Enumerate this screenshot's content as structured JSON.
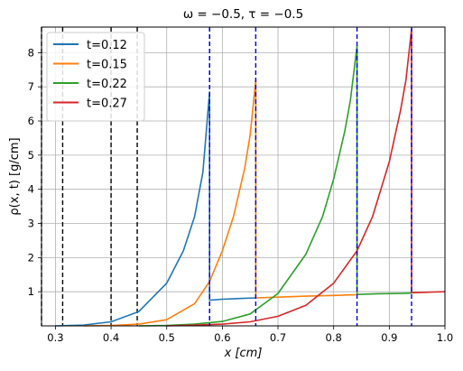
{
  "chart_data": {
    "type": "line",
    "title": "ω = −0.5,  τ = −0.5",
    "xlabel": "x [cm]",
    "ylabel": "ρ(x, t)  [g/cm]",
    "xlim": [
      0.275,
      1.0
    ],
    "ylim": [
      0.0,
      8.75
    ],
    "xticks": [
      0.3,
      0.4,
      0.5,
      0.6,
      0.7,
      0.8,
      0.9,
      1.0
    ],
    "xtick_labels": [
      "0.3",
      "0.4",
      "0.5",
      "0.6",
      "0.7",
      "0.8",
      "0.9",
      "1.0"
    ],
    "yticks": [
      1,
      2,
      3,
      4,
      5,
      6,
      7,
      8
    ],
    "ytick_labels": [
      "1",
      "2",
      "3",
      "4",
      "5",
      "6",
      "7",
      "8"
    ],
    "grid": true,
    "legend_position": "top-left",
    "series": [
      {
        "name": "t=0.12",
        "color": "#1f77b4",
        "x": [
          0.3,
          0.35,
          0.4,
          0.45,
          0.5,
          0.53,
          0.55,
          0.565,
          0.577,
          0.577,
          0.6,
          0.63,
          0.66
        ],
        "y": [
          0.0,
          0.02,
          0.12,
          0.42,
          1.25,
          2.2,
          3.2,
          4.5,
          6.85,
          0.75,
          0.78,
          0.8,
          0.82
        ]
      },
      {
        "name": "t=0.15",
        "color": "#ff7f0e",
        "x": [
          0.35,
          0.4,
          0.45,
          0.5,
          0.55,
          0.577,
          0.6,
          0.62,
          0.64,
          0.65,
          0.66,
          0.66,
          0.7,
          0.75,
          0.8,
          0.84
        ],
        "y": [
          0.0,
          0.01,
          0.05,
          0.18,
          0.65,
          1.3,
          2.2,
          3.2,
          4.6,
          5.6,
          7.2,
          0.82,
          0.84,
          0.87,
          0.89,
          0.91
        ]
      },
      {
        "name": "t=0.22",
        "color": "#2ca02c",
        "x": [
          0.45,
          0.5,
          0.55,
          0.6,
          0.65,
          0.7,
          0.75,
          0.78,
          0.8,
          0.82,
          0.83,
          0.842,
          0.842,
          0.88,
          0.92,
          0.94
        ],
        "y": [
          0.0,
          0.01,
          0.05,
          0.13,
          0.35,
          0.95,
          2.1,
          3.2,
          4.3,
          5.7,
          6.6,
          8.2,
          0.92,
          0.94,
          0.95,
          0.96
        ]
      },
      {
        "name": "t=0.27",
        "color": "#d62728",
        "x": [
          0.5,
          0.55,
          0.6,
          0.65,
          0.7,
          0.75,
          0.8,
          0.842,
          0.87,
          0.9,
          0.92,
          0.93,
          0.94,
          0.94,
          0.96,
          0.98,
          1.0
        ],
        "y": [
          0.0,
          0.02,
          0.05,
          0.12,
          0.28,
          0.6,
          1.25,
          2.2,
          3.2,
          4.8,
          6.3,
          7.2,
          8.7,
          0.97,
          0.98,
          0.99,
          1.0
        ]
      }
    ],
    "vlines_black": [
      0.275,
      0.313,
      0.4,
      0.447,
      0.577
    ],
    "vlines_blue": [
      0.577,
      0.66,
      0.842,
      0.94
    ]
  }
}
